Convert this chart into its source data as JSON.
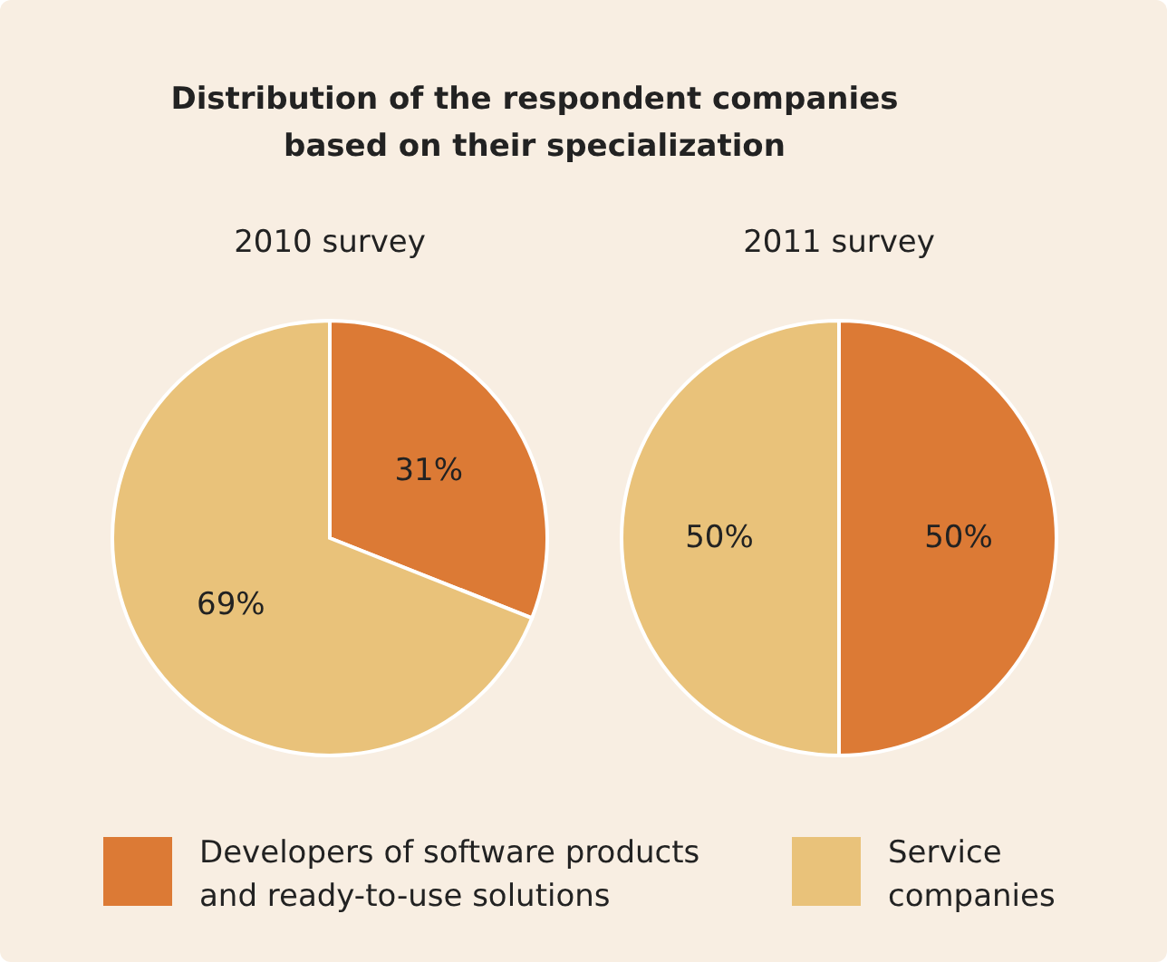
{
  "chart_data": [
    {
      "type": "pie",
      "title": "Distribution of the respondent companies based on their specialization",
      "subtitle": "2010 survey",
      "categories": [
        "Developers of software products and ready-to-use solutions",
        "Service companies"
      ],
      "values": [
        31,
        69
      ],
      "value_labels": [
        "31%",
        "69%"
      ],
      "colors": [
        "#dc7a35",
        "#e9c27a"
      ],
      "legend": "bottom"
    },
    {
      "type": "pie",
      "subtitle": "2011 survey",
      "categories": [
        null,
        null
      ],
      "values": [
        50,
        50
      ],
      "value_labels": [
        "50%",
        "50%"
      ],
      "colors": [
        "#dc7a35",
        "#e9c27a"
      ]
    }
  ]
}
